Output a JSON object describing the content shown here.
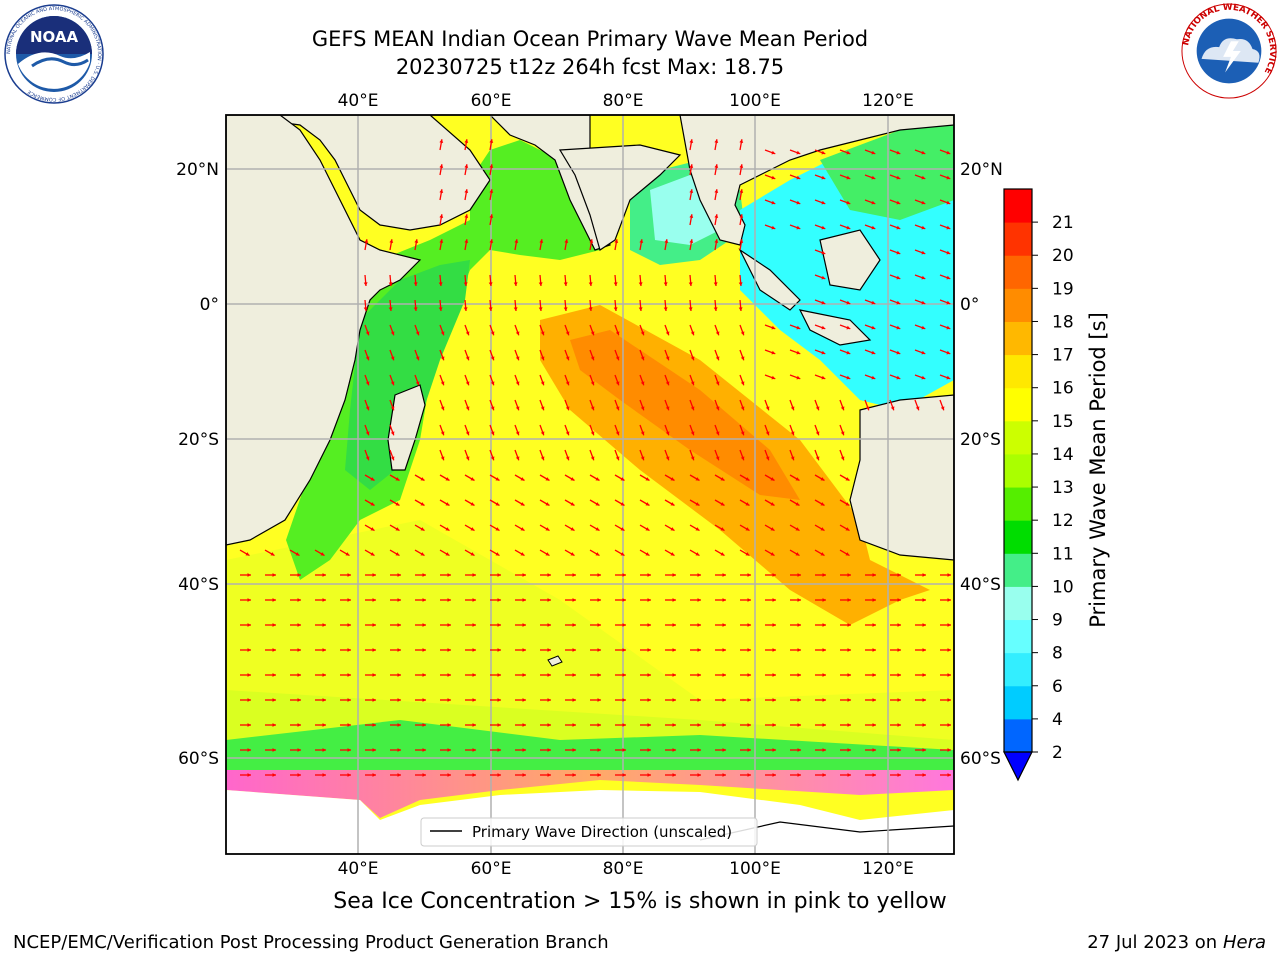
{
  "title": {
    "line1": "GEFS MEAN Indian Ocean Primary Wave Mean Period",
    "line2": "20230725 t12z 264h fcst   Max: 18.75"
  },
  "logos": {
    "noaa_text": "NOAA",
    "noaa_ring": "NATIONAL OCEANIC AND ATMOSPHERIC ADMINISTRATION · U.S. DEPARTMENT OF COMMERCE",
    "nws_ring": "NATIONAL WEATHER SERVICE"
  },
  "map": {
    "lon_labels": [
      "40°E",
      "60°E",
      "80°E",
      "100°E",
      "120°E"
    ],
    "lat_labels": [
      "20°N",
      "0°",
      "20°S",
      "40°S",
      "60°S"
    ],
    "legend_label": "Primary Wave Direction (unscaled)",
    "arrow_color": "#ff0000"
  },
  "colorbar": {
    "title": "Primary Wave Mean Period [s]",
    "ticks": [
      "2",
      "4",
      "6",
      "8",
      "9",
      "10",
      "11",
      "12",
      "13",
      "14",
      "15",
      "16",
      "17",
      "18",
      "19",
      "20",
      "21"
    ],
    "colors": [
      "#0066ff",
      "#00ccff",
      "#33eeff",
      "#66ffff",
      "#99ffee",
      "#44ee88",
      "#00dd00",
      "#55ee00",
      "#aaff00",
      "#ccff00",
      "#ffff00",
      "#ffe800",
      "#ffb800",
      "#ff8c00",
      "#ff6600",
      "#ff3300",
      "#ff0000"
    ],
    "under_color": "#0000ff"
  },
  "footer": {
    "note": "Sea Ice Concentration > 15% is shown in pink to yellow",
    "left": "NCEP/EMC/Verification Post Processing Product Generation Branch",
    "date": "27 Jul 2023 on ",
    "host": "Hera"
  }
}
